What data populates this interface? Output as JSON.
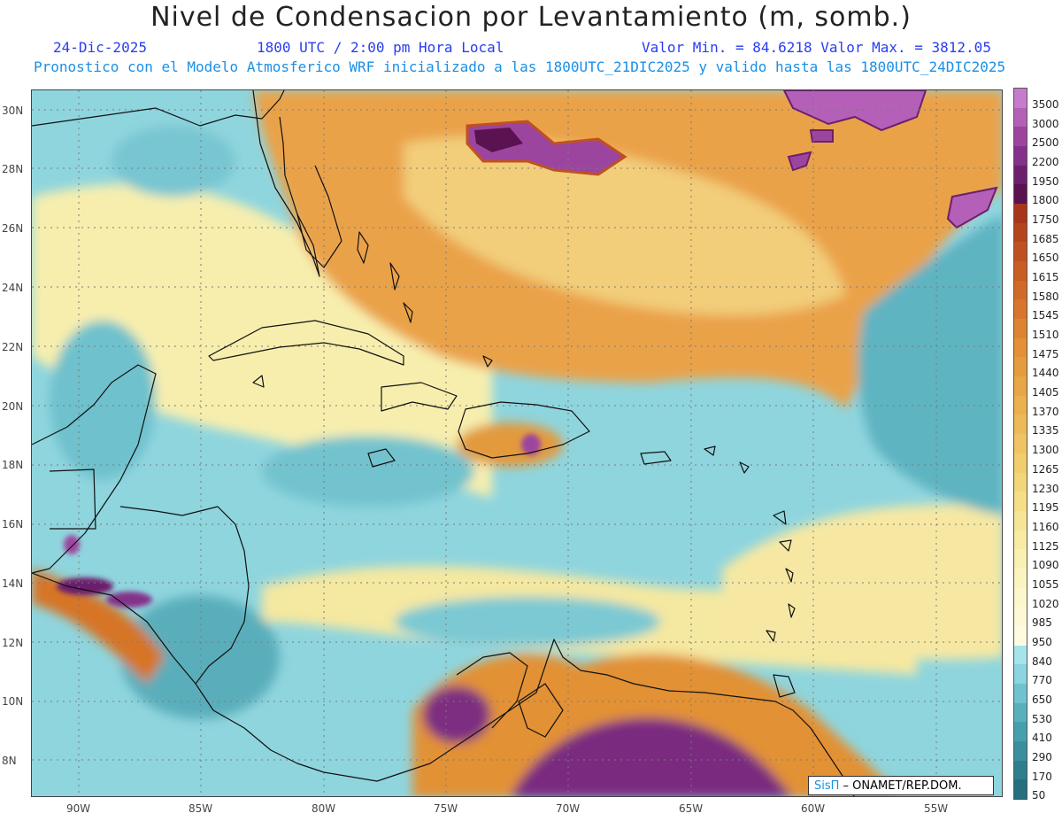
{
  "header": {
    "title": "Nivel de Condensacion por Levantamiento (m, somb.)",
    "date": "24-Dic-2025",
    "time": "1800 UTC / 2:00 pm Hora Local",
    "min_max": "Valor Min. = 84.6218  Valor Max. = 3812.05",
    "model_info": "Pronostico con el Modelo Atmosferico WRF inicializado a las 1800UTC_21DIC2025 y valido hasta las  1800UTC_24DIC2025"
  },
  "map": {
    "lat_labels": [
      "30N",
      "28N",
      "26N",
      "24N",
      "22N",
      "20N",
      "18N",
      "16N",
      "14N",
      "12N",
      "10N",
      "8N"
    ],
    "lon_labels": [
      "90W",
      "85W",
      "80W",
      "75W",
      "70W",
      "65W",
      "60W",
      "55W"
    ]
  },
  "colorbar": {
    "labels": [
      "3500",
      "3000",
      "2500",
      "2200",
      "1950",
      "1800",
      "1750",
      "1685",
      "1650",
      "1615",
      "1580",
      "1545",
      "1510",
      "1475",
      "1440",
      "1405",
      "1370",
      "1335",
      "1300",
      "1265",
      "1230",
      "1195",
      "1160",
      "1125",
      "1090",
      "1055",
      "1020",
      "985",
      "950",
      "840",
      "770",
      "650",
      "530",
      "410",
      "290",
      "170",
      "50"
    ],
    "colors": [
      "#c77bcc",
      "#b45fb8",
      "#9c459f",
      "#83318a",
      "#6c1f6d",
      "#5a1250",
      "#a9361a",
      "#b5441d",
      "#c0511f",
      "#c95d22",
      "#d16a26",
      "#d8772b",
      "#de8430",
      "#e39036",
      "#e69b3c",
      "#e9a644",
      "#ecb04d",
      "#eeba57",
      "#f0c462",
      "#f2cd6d",
      "#f3d67a",
      "#f5de87",
      "#f6e595",
      "#f8eba4",
      "#f9f0b2",
      "#fbf4c0",
      "#fcf7cc",
      "#fdf9d6",
      "#fefbe0",
      "#a6e4ec",
      "#8ad5df",
      "#6fc3cf",
      "#58b0bd",
      "#45a0ae",
      "#3a8f9e",
      "#2f7e8d",
      "#266f7e"
    ]
  },
  "credit": {
    "brand": "SisΠ",
    "text": " – ONAMET/REP.DOM."
  }
}
